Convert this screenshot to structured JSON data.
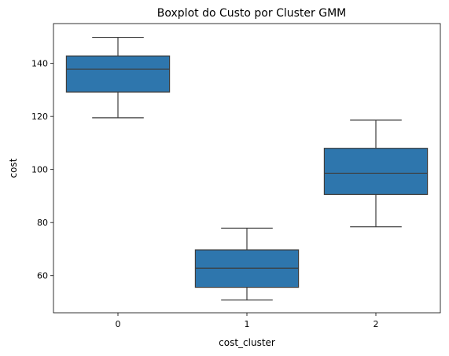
{
  "chart_data": {
    "type": "box",
    "title": "Boxplot do Custo por Cluster GMM",
    "xlabel": "cost_cluster",
    "ylabel": "cost",
    "categories": [
      "0",
      "1",
      "2"
    ],
    "ylim": [
      46,
      155
    ],
    "yticks": [
      "60",
      "80",
      "100",
      "120",
      "140"
    ],
    "grid": false,
    "box_color": "#2e76ad",
    "line_color": "#3d3d3d",
    "boxes": [
      {
        "category": "0",
        "whisker_low": 119.5,
        "q1": 129.2,
        "median": 137.8,
        "q3": 142.8,
        "whisker_high": 149.8
      },
      {
        "category": "1",
        "whisker_low": 50.8,
        "q1": 55.6,
        "median": 62.8,
        "q3": 69.7,
        "whisker_high": 77.9
      },
      {
        "category": "2",
        "whisker_low": 78.4,
        "q1": 90.6,
        "median": 98.6,
        "q3": 108.0,
        "whisker_high": 118.6
      }
    ]
  }
}
